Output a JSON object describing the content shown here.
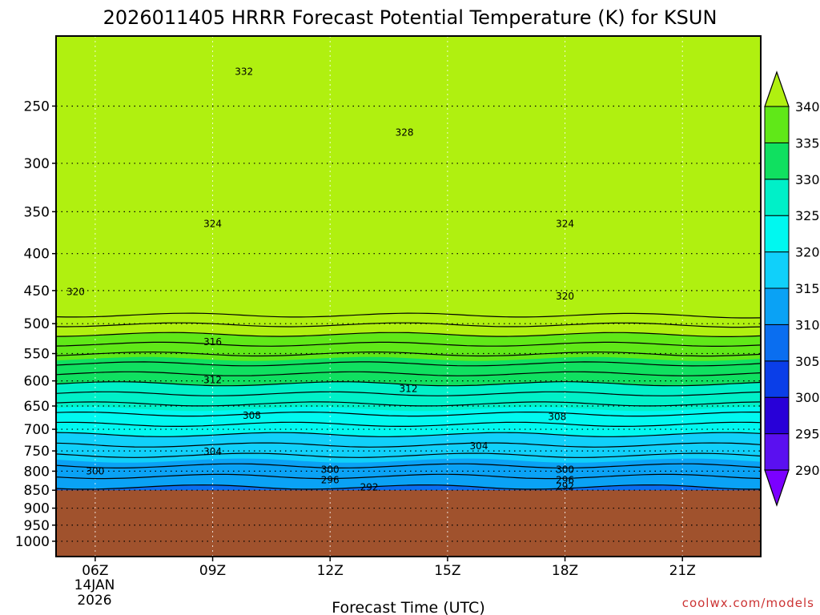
{
  "chart_data": {
    "type": "contour",
    "title": "2026011405 HRRR Forecast Potential Temperature (K) for KSUN",
    "xlabel": "Forecast Time (UTC)",
    "credit": "coolwx.com/models",
    "x_ticks": [
      "06Z",
      "09Z",
      "12Z",
      "15Z",
      "18Z",
      "21Z"
    ],
    "x_tick_hours": [
      6,
      9,
      12,
      15,
      18,
      21
    ],
    "x_date_line1": "14JAN",
    "x_date_line2": "2026",
    "xlim_hours": [
      5,
      23
    ],
    "y_ticks": [
      250,
      300,
      350,
      400,
      450,
      500,
      550,
      600,
      650,
      700,
      750,
      800,
      850,
      900,
      950,
      1000
    ],
    "ylim_hPa": [
      200,
      1050
    ],
    "y_scale": "log",
    "grid": "dotted",
    "ground_level_hPa": 850,
    "ground_color": "#a0522d",
    "colorbar": {
      "levels": [
        290,
        295,
        300,
        305,
        310,
        315,
        320,
        325,
        330,
        335,
        340
      ],
      "colors": [
        "#7b00ff",
        "#5a10f0",
        "#2800d8",
        "#0a3ee8",
        "#0a6ef0",
        "#0aa2f5",
        "#10d0fa",
        "#00f8f0",
        "#00f0c8",
        "#10e060",
        "#60e818",
        "#b0f010"
      ],
      "extend": "both"
    },
    "contour_interval_K": 2,
    "contour_labels": [
      {
        "hour": 9.8,
        "hPa": 224,
        "value": "332"
      },
      {
        "hour": 13.9,
        "hPa": 272,
        "value": "328"
      },
      {
        "hour": 9.0,
        "hPa": 364,
        "value": "324"
      },
      {
        "hour": 18.0,
        "hPa": 364,
        "value": "324"
      },
      {
        "hour": 5.5,
        "hPa": 452,
        "value": "320"
      },
      {
        "hour": 18.0,
        "hPa": 458,
        "value": "320"
      },
      {
        "hour": 9.0,
        "hPa": 530,
        "value": "316"
      },
      {
        "hour": 9.0,
        "hPa": 598,
        "value": "312"
      },
      {
        "hour": 14.0,
        "hPa": 615,
        "value": "312"
      },
      {
        "hour": 10.0,
        "hPa": 670,
        "value": "308"
      },
      {
        "hour": 17.8,
        "hPa": 673,
        "value": "308"
      },
      {
        "hour": 9.0,
        "hPa": 752,
        "value": "304"
      },
      {
        "hour": 15.8,
        "hPa": 738,
        "value": "304"
      },
      {
        "hour": 6.0,
        "hPa": 800,
        "value": "300"
      },
      {
        "hour": 12.0,
        "hPa": 796,
        "value": "300"
      },
      {
        "hour": 18.0,
        "hPa": 796,
        "value": "300"
      },
      {
        "hour": 12.0,
        "hPa": 823,
        "value": "296"
      },
      {
        "hour": 18.0,
        "hPa": 823,
        "value": "296"
      },
      {
        "hour": 13.0,
        "hPa": 842,
        "value": "292"
      },
      {
        "hour": 18.0,
        "hPa": 840,
        "value": "292"
      }
    ]
  }
}
